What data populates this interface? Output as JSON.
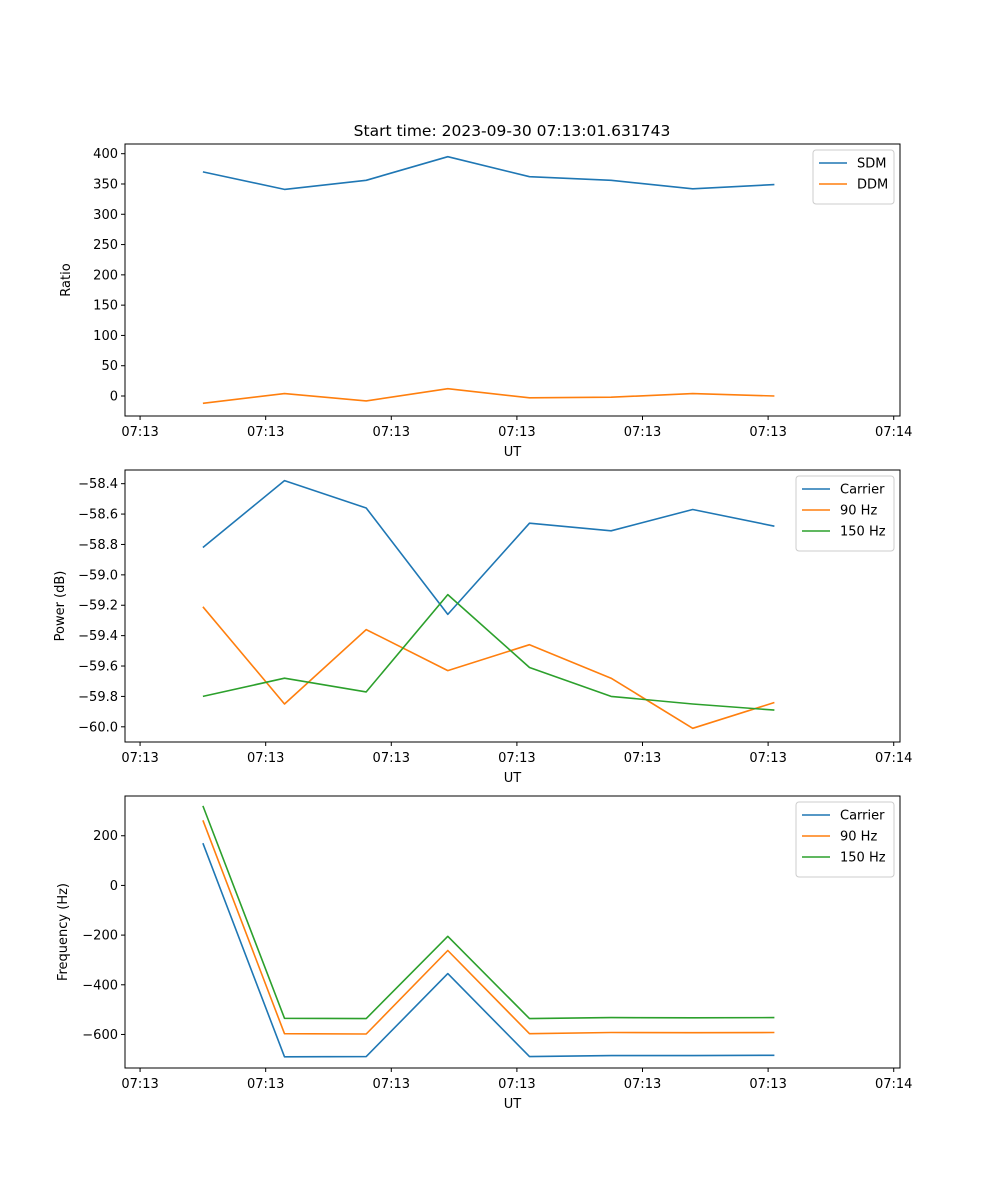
{
  "title": "Start time: 2023-09-30 07:13:01.631743",
  "colors": {
    "c0": "#1f77b4",
    "c1": "#ff7f0e",
    "c2": "#2ca02c"
  },
  "chart_data": [
    {
      "type": "line",
      "title": "Start time: 2023-09-30 07:13:01.631743",
      "xlabel": "UT",
      "ylabel": "Ratio",
      "x": [
        0.5,
        1.15,
        1.8,
        2.45,
        3.1,
        3.75,
        4.4,
        5.05
      ],
      "xlim": [
        -0.12,
        6.05
      ],
      "x_ticks": [
        0,
        1,
        2,
        3,
        4,
        5,
        6
      ],
      "x_tick_labels": [
        "07:13",
        "07:13",
        "07:13",
        "07:13",
        "07:13",
        "07:13",
        "07:14"
      ],
      "ylim": [
        -33,
        416
      ],
      "y_ticks": [
        0,
        50,
        100,
        150,
        200,
        250,
        300,
        350,
        400
      ],
      "y_tick_labels": [
        "0",
        "50",
        "100",
        "150",
        "200",
        "250",
        "300",
        "350",
        "400"
      ],
      "legend": "top-right",
      "series": [
        {
          "name": "SDM",
          "color": "#1f77b4",
          "values": [
            370,
            341,
            356,
            395,
            362,
            356,
            342,
            349
          ]
        },
        {
          "name": "DDM",
          "color": "#ff7f0e",
          "values": [
            -12,
            4,
            -8,
            12,
            -3,
            -2,
            4,
            0
          ]
        }
      ]
    },
    {
      "type": "line",
      "xlabel": "UT",
      "ylabel": "Power (dB)",
      "x": [
        0.5,
        1.15,
        1.8,
        2.45,
        3.1,
        3.75,
        4.4,
        5.05
      ],
      "xlim": [
        -0.12,
        6.05
      ],
      "x_ticks": [
        0,
        1,
        2,
        3,
        4,
        5,
        6
      ],
      "x_tick_labels": [
        "07:13",
        "07:13",
        "07:13",
        "07:13",
        "07:13",
        "07:13",
        "07:14"
      ],
      "ylim": [
        -60.1,
        -58.31
      ],
      "y_ticks": [
        -60.0,
        -59.8,
        -59.6,
        -59.4,
        -59.2,
        -59.0,
        -58.8,
        -58.6,
        -58.4
      ],
      "y_tick_labels": [
        "−60.0",
        "−59.8",
        "−59.6",
        "−59.4",
        "−59.2",
        "−59.0",
        "−58.8",
        "−58.6",
        "−58.4"
      ],
      "legend": "top-right",
      "series": [
        {
          "name": "Carrier",
          "color": "#1f77b4",
          "values": [
            -58.82,
            -58.38,
            -58.56,
            -59.26,
            -58.66,
            -58.71,
            -58.57,
            -58.68
          ]
        },
        {
          "name": "90 Hz",
          "color": "#ff7f0e",
          "values": [
            -59.21,
            -59.85,
            -59.36,
            -59.63,
            -59.46,
            -59.68,
            -60.01,
            -59.84
          ]
        },
        {
          "name": "150 Hz",
          "color": "#2ca02c",
          "values": [
            -59.8,
            -59.68,
            -59.77,
            -59.13,
            -59.61,
            -59.8,
            -59.85,
            -59.89
          ]
        }
      ]
    },
    {
      "type": "line",
      "xlabel": "UT",
      "ylabel": "Frequency (Hz)",
      "x": [
        0.5,
        1.15,
        1.8,
        2.45,
        3.1,
        3.75,
        4.4,
        5.05
      ],
      "xlim": [
        -0.12,
        6.05
      ],
      "x_ticks": [
        0,
        1,
        2,
        3,
        4,
        5,
        6
      ],
      "x_tick_labels": [
        "07:13",
        "07:13",
        "07:13",
        "07:13",
        "07:13",
        "07:13",
        "07:14"
      ],
      "ylim": [
        -735,
        360
      ],
      "y_ticks": [
        -600,
        -400,
        -200,
        0,
        200
      ],
      "y_tick_labels": [
        "−600",
        "−400",
        "−200",
        "0",
        "200"
      ],
      "legend": "top-right",
      "series": [
        {
          "name": "Carrier",
          "color": "#1f77b4",
          "values": [
            170,
            -690,
            -689,
            -355,
            -689,
            -685,
            -685,
            -684
          ]
        },
        {
          "name": "90 Hz",
          "color": "#ff7f0e",
          "values": [
            262,
            -597,
            -598,
            -262,
            -597,
            -592,
            -593,
            -592
          ]
        },
        {
          "name": "150 Hz",
          "color": "#2ca02c",
          "values": [
            320,
            -535,
            -536,
            -205,
            -536,
            -532,
            -533,
            -532
          ]
        }
      ]
    }
  ]
}
